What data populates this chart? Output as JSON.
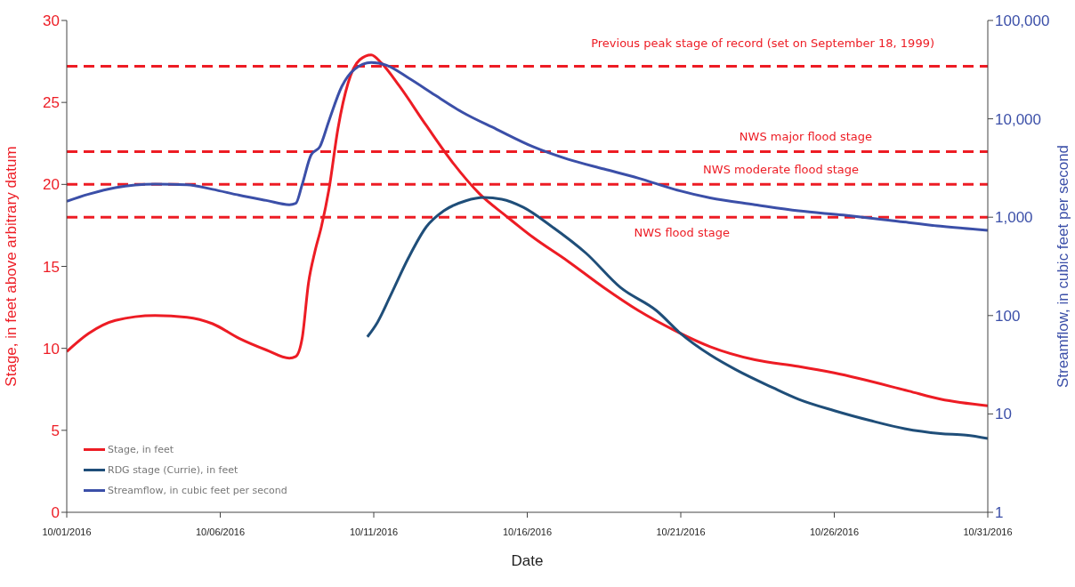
{
  "chart_data": {
    "type": "line",
    "xlabel": "Date",
    "ylabel": "Stage, in feet above arbitrary datum",
    "y2label": "Streamflow, in cubic feet per second",
    "xlim": [
      "2016-10-01",
      "2016-10-31"
    ],
    "xticks": [
      {
        "value": "2016-10-01",
        "label": "10/01/2016"
      },
      {
        "value": "2016-10-06",
        "label": "10/06/2016"
      },
      {
        "value": "2016-10-11",
        "label": "10/11/2016"
      },
      {
        "value": "2016-10-16",
        "label": "10/16/2016"
      },
      {
        "value": "2016-10-21",
        "label": "10/21/2016"
      },
      {
        "value": "2016-10-26",
        "label": "10/26/2016"
      },
      {
        "value": "2016-10-31",
        "label": "10/31/2016"
      }
    ],
    "ylim": [
      0,
      30
    ],
    "yticks": [
      0,
      5,
      10,
      15,
      20,
      25,
      30
    ],
    "y2lim": [
      1,
      100000
    ],
    "y2ticks": [
      1,
      10,
      100,
      {
        "value": 1000,
        "label": "1,000"
      },
      {
        "value": 10000,
        "label": "10,000"
      },
      {
        "value": 100000,
        "label": "100,000"
      }
    ],
    "log": "y2",
    "grid": false,
    "legend": "bottom left",
    "series": [
      {
        "name": "Stage, in feet",
        "color": "#ed1c24",
        "axis": "y",
        "x": [
          "2016-10-01T00:00",
          "2016-10-01T17:00",
          "2016-10-02T14:00",
          "2016-10-03T21:00",
          "2016-10-04T22:00",
          "2016-10-05T18:00",
          "2016-10-06T15:00",
          "2016-10-07T12:00",
          "2016-10-08T06:00",
          "2016-10-08T11:00",
          "2016-10-08T16:00",
          "2016-10-08T21:00",
          "2016-10-09T02:00",
          "2016-10-09T07:00",
          "2016-10-09T13:00",
          "2016-10-09T20:00",
          "2016-10-10T04:00",
          "2016-10-10T13:00",
          "2016-10-10T22:00",
          "2016-10-11T06:00",
          "2016-10-11T20:00",
          "2016-10-12T17:00",
          "2016-10-13T14:00",
          "2016-10-14T11:00",
          "2016-10-15T07:00",
          "2016-10-16T04:00",
          "2016-10-17T08:00",
          "2016-10-18T12:00",
          "2016-10-19T15:00",
          "2016-10-20T19:00",
          "2016-10-21T23:00",
          "2016-10-23T10:00",
          "2016-10-24T20:00",
          "2016-10-26T00:00",
          "2016-10-28T10:00",
          "2016-10-29T11:00",
          "2016-10-31T00:00"
        ],
        "values": [
          9.8,
          10.9,
          11.7,
          12.0,
          11.9,
          11.5,
          10.6,
          9.9,
          9.4,
          9.5,
          10.6,
          14.0,
          15.9,
          17.4,
          19.7,
          23.4,
          26.2,
          27.6,
          27.9,
          27.4,
          26.0,
          23.6,
          21.3,
          19.4,
          18.1,
          16.8,
          15.3,
          13.7,
          12.3,
          11.1,
          10.1,
          9.3,
          8.9,
          8.5,
          7.4,
          6.9,
          6.5
        ]
      },
      {
        "name": "RDG stage (Currie), in feet",
        "color": "#1f4e79",
        "axis": "y",
        "x": [
          "2016-10-10T19:00",
          "2016-10-11T03:00",
          "2016-10-11T13:00",
          "2016-10-12T03:00",
          "2016-10-12T17:00",
          "2016-10-13T07:00",
          "2016-10-14T00:00",
          "2016-10-14T14:00",
          "2016-10-15T04:00",
          "2016-10-15T21:00",
          "2016-10-16T18:00",
          "2016-10-17T22:00",
          "2016-10-19T01:00",
          "2016-10-20T05:00",
          "2016-10-21T00:00",
          "2016-10-21T23:00",
          "2016-10-22T19:00",
          "2016-10-24T00:00",
          "2016-10-24T20:00",
          "2016-10-26T00:00",
          "2016-10-27T04:00",
          "2016-10-28T07:00",
          "2016-10-29T11:00",
          "2016-10-30T07:00",
          "2016-10-31T00:00"
        ],
        "values": [
          10.7,
          11.6,
          13.2,
          15.5,
          17.4,
          18.4,
          19.0,
          19.2,
          19.1,
          18.6,
          17.5,
          15.8,
          13.7,
          12.3,
          10.9,
          9.6,
          8.7,
          7.6,
          6.9,
          6.2,
          5.6,
          5.1,
          4.8,
          4.7,
          4.5
        ]
      },
      {
        "name": "Streamflow, in cubic feet per second",
        "color": "#3b4fa8",
        "axis": "y2",
        "x": [
          "2016-10-01T00:00",
          "2016-10-01T17:00",
          "2016-10-02T14:00",
          "2016-10-03T21:00",
          "2016-10-04T22:00",
          "2016-10-05T18:00",
          "2016-10-06T15:00",
          "2016-10-07T12:00",
          "2016-10-08T06:00",
          "2016-10-08T11:00",
          "2016-10-08T16:00",
          "2016-10-08T23:00",
          "2016-10-09T06:00",
          "2016-10-09T13:00",
          "2016-10-09T23:00",
          "2016-10-10T09:00",
          "2016-10-10T22:00",
          "2016-10-11T10:00",
          "2016-10-12T03:00",
          "2016-10-13T00:00",
          "2016-10-13T21:00",
          "2016-10-15T00:00",
          "2016-10-16T04:00",
          "2016-10-17T08:00",
          "2016-10-18T12:00",
          "2016-10-19T15:00",
          "2016-10-20T19:00",
          "2016-10-21T23:00",
          "2016-10-23T10:00",
          "2016-10-24T20:00",
          "2016-10-26T07:00",
          "2016-10-27T18:00",
          "2016-10-29T11:00",
          "2016-10-31T00:00"
        ],
        "values": [
          1450,
          1710,
          2000,
          2170,
          2140,
          1920,
          1670,
          1480,
          1340,
          1380,
          2140,
          4290,
          5240,
          9560,
          21300,
          31900,
          37400,
          35000,
          26100,
          17400,
          11700,
          7830,
          5240,
          3880,
          3090,
          2490,
          1920,
          1570,
          1340,
          1160,
          1050,
          935,
          810,
          735
        ]
      }
    ],
    "ref_lines": [
      {
        "axis": "y",
        "value": 27.2,
        "label": "Previous peak stage of record  (set on September 18, 1999)",
        "color": "#ed1c24",
        "line_style": "dashed"
      },
      {
        "axis": "y",
        "value": 22,
        "label": "NWS major flood  stage",
        "color": "#ed1c24",
        "line_style": "dashed"
      },
      {
        "axis": "y",
        "value": 20,
        "label": "NWS moderate flood  stage",
        "color": "#ed1c24",
        "line_style": "dashed"
      },
      {
        "axis": "y",
        "value": 18,
        "label": "NWS flood  stage",
        "color": "#ed1c24",
        "line_style": "dashed"
      }
    ]
  }
}
